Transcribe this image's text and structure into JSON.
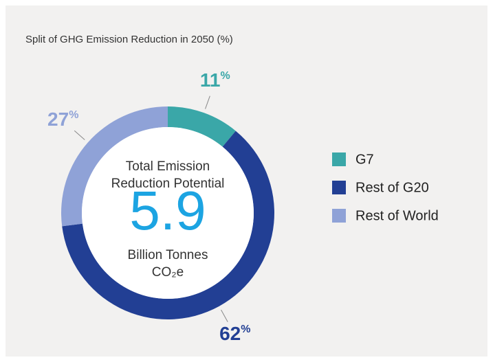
{
  "chart_data": {
    "type": "donut",
    "title": "Split of GHG Emission Reduction in 2050 (%)",
    "categories": [
      "G7",
      "Rest of G20",
      "Rest of World"
    ],
    "values": [
      11,
      62,
      27
    ],
    "value_labels": [
      "11%",
      "62%",
      "27%"
    ],
    "colors": [
      "#3aa7a8",
      "#223f94",
      "#8fa2d7"
    ],
    "center_text": {
      "line1": "Total Emission",
      "line2": "Reduction Potential",
      "value": "5.9",
      "line3": "Billion Tonnes",
      "line4": "CO₂e"
    },
    "legend": "right"
  }
}
